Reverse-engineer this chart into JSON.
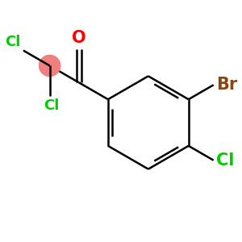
{
  "bg_color": "#ffffff",
  "bond_color": "#000000",
  "bond_width": 1.8,
  "atom_colors": {
    "O": "#ff0000",
    "Cl": "#00cc00",
    "Br": "#8B4513",
    "C_pink": "#f08080"
  },
  "font_size_atoms": 15,
  "font_size_cl": 13
}
